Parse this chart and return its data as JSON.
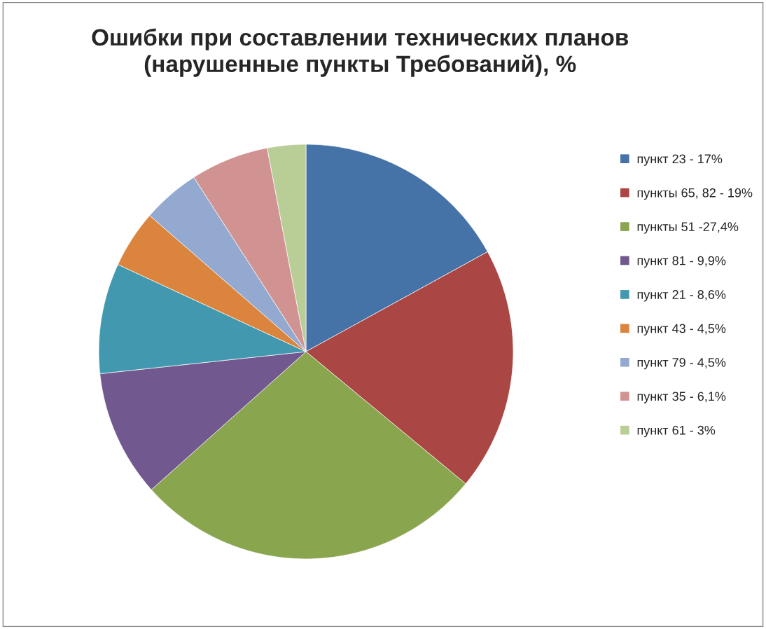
{
  "chart_data": {
    "type": "pie",
    "title": "Ошибки при составлении технических планов\n(нарушенные пункты Требований), %",
    "categories": [
      "пункт 23 - 17%",
      "пункты 65, 82 - 19%",
      "пункты 51 -27,4%",
      "пункт 81 - 9,9%",
      "пункт 21 - 8,6%",
      "пункт 43 - 4,5%",
      "пункт 79 - 4,5%",
      "пункт 35 - 6,1%",
      "пункт 61 - 3%"
    ],
    "values": [
      17,
      19,
      27.4,
      9.9,
      8.6,
      4.5,
      4.5,
      6.1,
      3
    ],
    "colors": [
      "#4572a7",
      "#aa4643",
      "#89a54e",
      "#71588f",
      "#4198af",
      "#db843d",
      "#93a9cf",
      "#d19392",
      "#b9cd96"
    ],
    "legend": "right"
  }
}
